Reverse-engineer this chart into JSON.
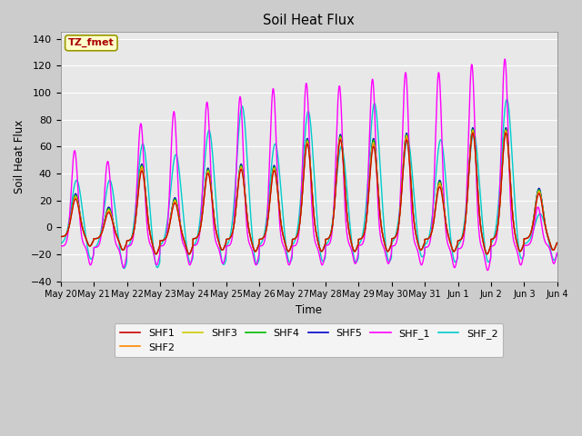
{
  "title": "Soil Heat Flux",
  "xlabel": "Time",
  "ylabel": "Soil Heat Flux",
  "ylim": [
    -40,
    145
  ],
  "yticks": [
    -40,
    -20,
    0,
    20,
    40,
    60,
    80,
    100,
    120,
    140
  ],
  "series_colors": {
    "SHF1": "#cc0000",
    "SHF2": "#ff8800",
    "SHF3": "#cccc00",
    "SHF4": "#00bb00",
    "SHF5": "#0000cc",
    "SHF_1": "#ff00ff",
    "SHF_2": "#00cccc"
  },
  "legend_label": "TZ_fmet",
  "n_days": 15,
  "start_day": 20,
  "day_peaks_shf1": [
    21,
    11,
    42,
    18,
    40,
    43,
    42,
    62,
    65,
    60,
    65,
    30,
    70,
    70,
    25
  ],
  "day_peaks_shf2": [
    22,
    12,
    44,
    19,
    41,
    44,
    43,
    63,
    66,
    62,
    67,
    32,
    71,
    71,
    26
  ],
  "day_peaks_shf3": [
    23,
    13,
    45,
    20,
    42,
    45,
    44,
    64,
    67,
    63,
    68,
    33,
    72,
    72,
    27
  ],
  "day_peaks_shf4": [
    24,
    14,
    46,
    21,
    43,
    46,
    45,
    65,
    68,
    65,
    69,
    34,
    73,
    73,
    28
  ],
  "day_peaks_shf5": [
    25,
    15,
    47,
    22,
    44,
    47,
    46,
    66,
    69,
    66,
    70,
    35,
    74,
    74,
    29
  ],
  "day_peaks_shf_1": [
    57,
    49,
    77,
    86,
    93,
    97,
    103,
    107,
    105,
    110,
    115,
    115,
    121,
    125,
    15
  ],
  "day_peaks_shf_2": [
    35,
    35,
    62,
    54,
    72,
    90,
    62,
    86,
    60,
    92,
    65,
    65,
    70,
    95,
    10
  ],
  "trough_shf1_5": [
    -14,
    -17,
    -20,
    -20,
    -17,
    -18,
    -18,
    -18,
    -18,
    -18,
    -17,
    -18,
    -20,
    -18,
    -17
  ],
  "trough_shf_1": [
    -28,
    -30,
    -28,
    -28,
    -27,
    -28,
    -28,
    -28,
    -27,
    -27,
    -28,
    -30,
    -32,
    -28,
    -27
  ],
  "trough_shf_2": [
    -25,
    -32,
    -32,
    -28,
    -30,
    -30,
    -28,
    -28,
    -28,
    -28,
    -24,
    -28,
    -28,
    -26,
    -25
  ]
}
